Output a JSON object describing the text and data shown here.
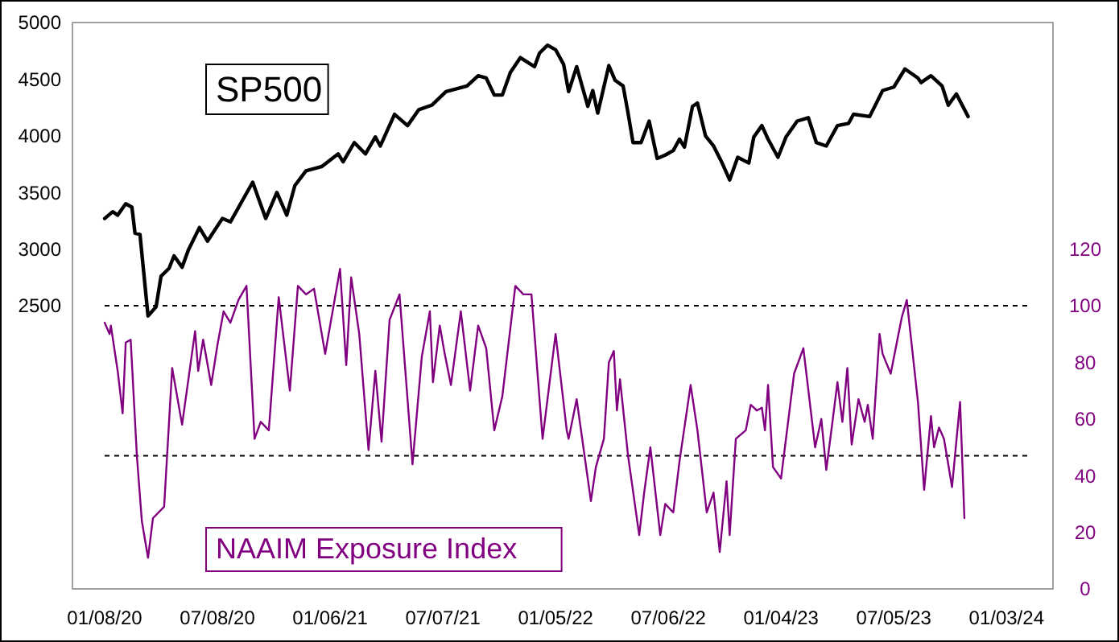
{
  "chart_data": {
    "type": "line",
    "legend": false,
    "grid": false,
    "xlim": [
      "2019-11-17",
      "2024-03-18"
    ],
    "xticks": [
      {
        "value": "2020-01-08",
        "label": "01/08/20"
      },
      {
        "value": "2020-07-08",
        "label": "07/08/20"
      },
      {
        "value": "2021-01-06",
        "label": "01/06/21"
      },
      {
        "value": "2021-07-07",
        "label": "07/07/21"
      },
      {
        "value": "2022-01-05",
        "label": "01/05/22"
      },
      {
        "value": "2022-07-06",
        "label": "07/06/22"
      },
      {
        "value": "2023-01-04",
        "label": "01/04/23"
      },
      {
        "value": "2023-07-05",
        "label": "07/05/23"
      },
      {
        "value": "2024-01-03",
        "label": "01/03/24"
      }
    ],
    "ylim": [
      0,
      5000
    ],
    "yticks": [
      2500,
      3000,
      3500,
      4000,
      4500,
      5000
    ],
    "y2lim": [
      0,
      200
    ],
    "y2ticks": [
      0,
      20,
      40,
      60,
      80,
      100,
      120
    ],
    "ref_lines": [
      {
        "axis": "y2",
        "value": 100,
        "line_style": "dashed",
        "color": "#000000"
      },
      {
        "axis": "y2",
        "value": 47,
        "line_style": "dashed",
        "color": "#000000"
      }
    ],
    "series": [
      {
        "name": "SP500",
        "color": "#000000",
        "x": [
          "2020-01-08",
          "2020-01-21",
          "2020-01-29",
          "2020-02-11",
          "2020-02-21",
          "2020-02-26",
          "2020-03-05",
          "2020-03-18",
          "2020-03-31",
          "2020-04-08",
          "2020-04-21",
          "2020-04-29",
          "2020-05-12",
          "2020-05-22",
          "2020-06-09",
          "2020-06-22",
          "2020-07-16",
          "2020-07-29",
          "2020-09-03",
          "2020-09-24",
          "2020-10-12",
          "2020-10-28",
          "2020-11-10",
          "2020-11-28",
          "2020-12-24",
          "2021-01-19",
          "2021-01-27",
          "2021-02-14",
          "2021-03-04",
          "2021-03-20",
          "2021-03-28",
          "2021-04-20",
          "2021-05-11",
          "2021-05-29",
          "2021-06-19",
          "2021-07-12",
          "2021-08-15",
          "2021-09-02",
          "2021-09-15",
          "2021-09-28",
          "2021-10-11",
          "2021-10-24",
          "2021-11-09",
          "2021-12-02",
          "2021-12-10",
          "2021-12-23",
          "2022-01-05",
          "2022-01-18",
          "2022-01-26",
          "2022-02-08",
          "2022-02-26",
          "2022-03-06",
          "2022-03-14",
          "2022-04-01",
          "2022-04-11",
          "2022-04-24",
          "2022-05-02",
          "2022-05-10",
          "2022-05-23",
          "2022-06-05",
          "2022-06-18",
          "2022-07-01",
          "2022-07-14",
          "2022-07-24",
          "2022-08-01",
          "2022-08-14",
          "2022-08-22",
          "2022-09-04",
          "2022-09-17",
          "2022-09-30",
          "2022-10-13",
          "2022-10-26",
          "2022-11-13",
          "2022-11-21",
          "2022-12-04",
          "2022-12-14",
          "2022-12-30",
          "2023-01-12",
          "2023-01-30",
          "2023-02-17",
          "2023-03-02",
          "2023-03-18",
          "2023-04-05",
          "2023-04-23",
          "2023-05-01",
          "2023-05-27",
          "2023-06-17",
          "2023-07-05",
          "2023-07-23",
          "2023-08-13",
          "2023-08-18",
          "2023-09-03",
          "2023-09-21",
          "2023-10-01",
          "2023-10-14",
          "2023-11-02"
        ],
        "values": [
          3270,
          3330,
          3300,
          3400,
          3370,
          3140,
          3130,
          2410,
          2490,
          2760,
          2830,
          2940,
          2840,
          2990,
          3190,
          3070,
          3270,
          3240,
          3590,
          3270,
          3500,
          3300,
          3560,
          3690,
          3730,
          3840,
          3770,
          3940,
          3840,
          3990,
          3910,
          4190,
          4090,
          4230,
          4270,
          4390,
          4440,
          4530,
          4510,
          4360,
          4360,
          4560,
          4690,
          4610,
          4730,
          4800,
          4760,
          4630,
          4390,
          4610,
          4260,
          4400,
          4200,
          4620,
          4490,
          4440,
          4200,
          3940,
          3940,
          4130,
          3800,
          3830,
          3870,
          3970,
          3900,
          4260,
          4290,
          4000,
          3910,
          3770,
          3610,
          3810,
          3760,
          3990,
          4090,
          3970,
          3810,
          3990,
          4130,
          4160,
          3940,
          3910,
          4090,
          4110,
          4190,
          4170,
          4400,
          4430,
          4590,
          4510,
          4470,
          4530,
          4440,
          4270,
          4370,
          4170
        ]
      },
      {
        "name": "NAAIM Exposure Index",
        "color": "#800080",
        "axis": "y2",
        "x": [
          "2020-01-08",
          "2020-01-16",
          "2020-01-18",
          "2020-01-29",
          "2020-02-06",
          "2020-02-11",
          "2020-02-19",
          "2020-02-29",
          "2020-03-08",
          "2020-03-18",
          "2020-03-26",
          "2020-04-13",
          "2020-04-26",
          "2020-05-12",
          "2020-06-02",
          "2020-06-07",
          "2020-06-15",
          "2020-06-28",
          "2020-07-08",
          "2020-07-18",
          "2020-07-29",
          "2020-08-11",
          "2020-08-24",
          "2020-09-06",
          "2020-09-16",
          "2020-09-29",
          "2020-10-15",
          "2020-11-02",
          "2020-11-15",
          "2020-11-28",
          "2020-12-11",
          "2020-12-29",
          "2021-01-22",
          "2021-02-01",
          "2021-02-09",
          "2021-02-22",
          "2021-03-09",
          "2021-03-20",
          "2021-03-30",
          "2021-04-12",
          "2021-04-28",
          "2021-05-19",
          "2021-06-03",
          "2021-06-16",
          "2021-06-21",
          "2021-07-02",
          "2021-07-10",
          "2021-07-20",
          "2021-08-05",
          "2021-08-20",
          "2021-09-02",
          "2021-09-15",
          "2021-09-28",
          "2021-10-11",
          "2021-11-01",
          "2021-11-14",
          "2021-11-27",
          "2021-12-15",
          "2022-01-05",
          "2022-01-23",
          "2022-01-26",
          "2022-02-08",
          "2022-03-03",
          "2022-03-11",
          "2022-03-24",
          "2022-04-01",
          "2022-04-09",
          "2022-04-14",
          "2022-04-19",
          "2022-05-02",
          "2022-05-20",
          "2022-05-28",
          "2022-06-07",
          "2022-06-23",
          "2022-07-01",
          "2022-07-14",
          "2022-07-24",
          "2022-08-11",
          "2022-08-22",
          "2022-09-06",
          "2022-09-17",
          "2022-09-27",
          "2022-10-08",
          "2022-10-13",
          "2022-10-23",
          "2022-11-08",
          "2022-11-16",
          "2022-11-26",
          "2022-12-04",
          "2022-12-09",
          "2022-12-14",
          "2022-12-22",
          "2023-01-04",
          "2023-01-25",
          "2023-02-09",
          "2023-02-28",
          "2023-03-10",
          "2023-03-18",
          "2023-03-28",
          "2023-04-05",
          "2023-04-13",
          "2023-04-21",
          "2023-04-28",
          "2023-05-09",
          "2023-05-19",
          "2023-05-24",
          "2023-06-01",
          "2023-06-12",
          "2023-06-17",
          "2023-06-30",
          "2023-07-18",
          "2023-07-26",
          "2023-08-13",
          "2023-08-23",
          "2023-09-03",
          "2023-09-08",
          "2023-09-16",
          "2023-09-24",
          "2023-10-07",
          "2023-10-20",
          "2023-10-27"
        ],
        "values": [
          94,
          90,
          93,
          77,
          62,
          87,
          88,
          47,
          24,
          11,
          25,
          29,
          78,
          58,
          91,
          77,
          88,
          72,
          86,
          98,
          94,
          102,
          107,
          53,
          59,
          56,
          103,
          70,
          107,
          104,
          106,
          83,
          113,
          79,
          110,
          90,
          49,
          77,
          52,
          95,
          104,
          44,
          82,
          98,
          73,
          93,
          83,
          72,
          98,
          70,
          93,
          85,
          56,
          68,
          107,
          104,
          104,
          53,
          90,
          56,
          53,
          67,
          31,
          43,
          53,
          80,
          84,
          63,
          74,
          47,
          19,
          34,
          50,
          19,
          30,
          27,
          45,
          72,
          56,
          27,
          34,
          13,
          38,
          19,
          53,
          56,
          65,
          63,
          64,
          56,
          72,
          43,
          39,
          76,
          85,
          50,
          60,
          42,
          59,
          73,
          59,
          78,
          51,
          67,
          59,
          65,
          53,
          90,
          83,
          76,
          96,
          102,
          66,
          35,
          61,
          50,
          57,
          53,
          36,
          66,
          25
        ]
      }
    ]
  }
}
